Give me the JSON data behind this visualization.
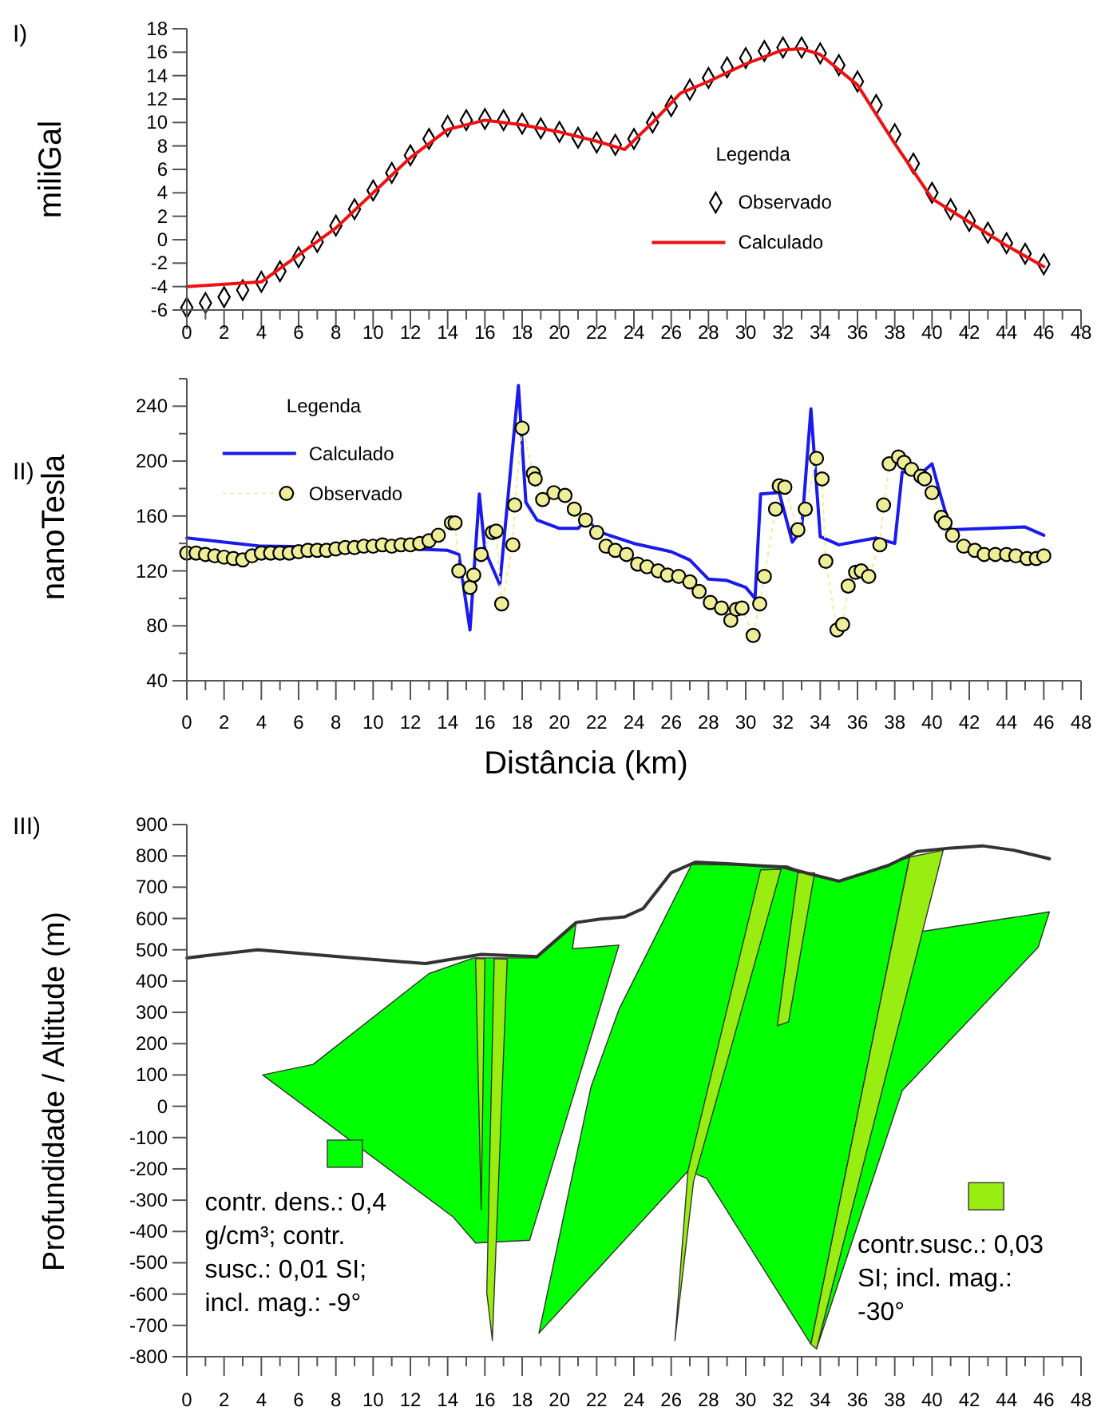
{
  "chart_data": [
    {
      "type": "line",
      "title": "I)",
      "ylabel": "miliGal",
      "legend_title": "Legenda",
      "legend": "right",
      "ylim": [
        -6,
        18
      ],
      "yticks": [
        -6,
        -4,
        -2,
        0,
        2,
        4,
        6,
        8,
        10,
        12,
        14,
        16,
        18
      ],
      "xlim": [
        0,
        48
      ],
      "xticks": [
        0,
        {
          "value": 1,
          "label": null
        },
        2,
        {
          "value": 3,
          "label": null
        },
        4,
        {
          "value": 5,
          "label": null
        },
        6,
        {
          "value": 7,
          "label": null
        },
        8,
        {
          "value": 9,
          "label": null
        },
        10,
        {
          "value": 11,
          "label": null
        },
        12,
        {
          "value": 13,
          "label": null
        },
        14,
        {
          "value": 15,
          "label": null
        },
        16,
        {
          "value": 17,
          "label": null
        },
        18,
        {
          "value": 19,
          "label": null
        },
        20,
        {
          "value": 21,
          "label": null
        },
        22,
        {
          "value": 23,
          "label": null
        },
        24,
        {
          "value": 25,
          "label": null
        },
        26,
        {
          "value": 27,
          "label": null
        },
        28,
        {
          "value": 29,
          "label": null
        },
        30,
        {
          "value": 31,
          "label": null
        },
        32,
        {
          "value": 33,
          "label": null
        },
        34,
        {
          "value": 35,
          "label": null
        },
        36,
        {
          "value": 37,
          "label": null
        },
        38,
        {
          "value": 39,
          "label": null
        },
        40,
        {
          "value": 41,
          "label": null
        },
        42,
        {
          "value": 43,
          "label": null
        },
        44,
        {
          "value": 45,
          "label": null
        },
        46,
        {
          "value": 47,
          "label": null
        },
        48
      ],
      "series": [
        {
          "name": "Observado",
          "type": "scatter",
          "marker": "diamond",
          "color": "#000000",
          "x": [
            0,
            1,
            2,
            3,
            4,
            5,
            6,
            7,
            8,
            9,
            10,
            11,
            12,
            13,
            14,
            15,
            16,
            17,
            18,
            19,
            20,
            21,
            22,
            23,
            24,
            25,
            26,
            27,
            28,
            29,
            30,
            31,
            32,
            33,
            34,
            35,
            36,
            37,
            38,
            39,
            40,
            41,
            42,
            43,
            44,
            45,
            46
          ],
          "values": [
            -5.8,
            -5.4,
            -4.9,
            -4.3,
            -3.6,
            -2.7,
            -1.5,
            -0.2,
            1.2,
            2.6,
            4.2,
            5.7,
            7.2,
            8.6,
            9.7,
            10.2,
            10.3,
            10.2,
            9.9,
            9.5,
            9.2,
            8.7,
            8.3,
            8.1,
            8.6,
            10,
            11.4,
            12.8,
            13.8,
            14.7,
            15.5,
            16.1,
            16.4,
            16.4,
            15.9,
            14.9,
            13.5,
            11.5,
            9,
            6.5,
            4,
            2.6,
            1.6,
            0.6,
            -0.3,
            -1.2,
            -2.1
          ]
        },
        {
          "name": "Calculado",
          "color": "#ee1111",
          "x": [
            0,
            4,
            8,
            12,
            14,
            16,
            18,
            20,
            22,
            23.5,
            25,
            26.5,
            28,
            30,
            32,
            33,
            34,
            36,
            38,
            40,
            42,
            44,
            46
          ],
          "values": [
            -4,
            -3.6,
            1,
            7,
            9.4,
            10.2,
            9.8,
            9.2,
            8.4,
            7.7,
            10,
            12.5,
            13.5,
            15,
            16.2,
            16.3,
            15.8,
            13.2,
            8.2,
            3.5,
            1.5,
            -0.5,
            -2.3
          ]
        }
      ]
    },
    {
      "type": "line",
      "title": "II)",
      "ylabel": "nanoTesla",
      "xlabel": "Distância (km)",
      "legend_title": "Legenda",
      "legend": "top left",
      "ylim": [
        40,
        260
      ],
      "yticks": [
        40,
        {
          "value": 60,
          "label": null
        },
        80,
        {
          "value": 100,
          "label": null
        },
        120,
        {
          "value": 140,
          "label": null
        },
        160,
        {
          "value": 180,
          "label": null
        },
        200,
        {
          "value": 220,
          "label": null
        },
        240,
        {
          "value": 260,
          "label": null
        }
      ],
      "xlim": [
        0,
        48
      ],
      "xticks": [
        0,
        {
          "value": 1,
          "label": null
        },
        2,
        {
          "value": 3,
          "label": null
        },
        4,
        {
          "value": 5,
          "label": null
        },
        6,
        {
          "value": 7,
          "label": null
        },
        8,
        {
          "value": 9,
          "label": null
        },
        10,
        {
          "value": 11,
          "label": null
        },
        12,
        {
          "value": 13,
          "label": null
        },
        14,
        {
          "value": 15,
          "label": null
        },
        16,
        {
          "value": 17,
          "label": null
        },
        18,
        {
          "value": 19,
          "label": null
        },
        20,
        {
          "value": 21,
          "label": null
        },
        22,
        {
          "value": 23,
          "label": null
        },
        24,
        {
          "value": 25,
          "label": null
        },
        26,
        {
          "value": 27,
          "label": null
        },
        28,
        {
          "value": 29,
          "label": null
        },
        30,
        {
          "value": 31,
          "label": null
        },
        32,
        {
          "value": 33,
          "label": null
        },
        34,
        {
          "value": 35,
          "label": null
        },
        36,
        {
          "value": 37,
          "label": null
        },
        38,
        {
          "value": 39,
          "label": null
        },
        40,
        {
          "value": 41,
          "label": null
        },
        42,
        {
          "value": 43,
          "label": null
        },
        44,
        {
          "value": 45,
          "label": null
        },
        46,
        {
          "value": 47,
          "label": null
        },
        48
      ],
      "series": [
        {
          "name": "Calculado",
          "color": "#1a1aee",
          "x": [
            0,
            2,
            4,
            10,
            14,
            14.6,
            15.2,
            15.7,
            16,
            16.8,
            17.8,
            18.2,
            18.8,
            20,
            21,
            21.5,
            22,
            24,
            26,
            27,
            28,
            29,
            30,
            30.5,
            30.8,
            31.8,
            32.5,
            33,
            33.5,
            34,
            35,
            37,
            38,
            38.4,
            39.5,
            40,
            40.5,
            41,
            45,
            46
          ],
          "values": [
            144,
            141,
            138,
            137,
            135,
            132,
            77,
            176,
            135,
            110,
            255,
            170,
            157,
            151,
            151,
            158,
            149,
            140,
            134,
            128,
            114,
            113,
            108,
            100,
            176,
            177,
            141,
            150,
            238,
            145,
            139,
            144,
            140,
            192,
            192,
            198,
            173,
            150,
            152,
            146
          ]
        },
        {
          "name": "Observado",
          "marker": "circle",
          "line_style": "dotted",
          "color": "#eeee99",
          "x": [
            0,
            0.5,
            1,
            1.5,
            2,
            2.5,
            3,
            3.5,
            4,
            4.5,
            5,
            5.5,
            6,
            6.5,
            7,
            7.5,
            8,
            8.5,
            9,
            9.5,
            10,
            10.5,
            11,
            11.5,
            12,
            12.5,
            13,
            13.5,
            14.2,
            14.4,
            14.6,
            15.2,
            15.4,
            15.8,
            16.4,
            16.6,
            16.9,
            17.5,
            17.6,
            18,
            18.6,
            18.7,
            19.1,
            19.7,
            20.3,
            20.8,
            21.4,
            22,
            22.5,
            23,
            23.6,
            24.2,
            24.7,
            25.3,
            25.8,
            26.4,
            27,
            27.5,
            28.1,
            28.7,
            29.2,
            29.5,
            29.8,
            30.4,
            30.75,
            31,
            31.6,
            31.8,
            32.1,
            32.8,
            33.2,
            33.8,
            34.1,
            34.3,
            34.9,
            35.2,
            35.5,
            35.9,
            36.2,
            36.6,
            37.2,
            37.4,
            37.7,
            38.2,
            38.5,
            38.9,
            39.4,
            39.6,
            40,
            40.5,
            40.7,
            41.1,
            41.7,
            42.3,
            42.8,
            43.4,
            44,
            44.5,
            45.1,
            45.6,
            46
          ],
          "values": [
            133,
            133,
            132,
            131,
            130,
            129,
            128,
            131,
            133,
            133,
            133,
            133,
            134,
            135,
            135,
            135,
            136,
            137,
            137,
            138,
            138,
            139,
            138,
            139,
            139,
            140,
            142,
            146,
            155,
            155,
            120,
            108,
            117,
            132,
            148,
            149,
            96,
            139,
            168,
            224,
            191,
            187,
            172,
            177,
            175,
            165,
            157,
            148,
            138,
            135,
            132,
            125,
            123,
            120,
            117,
            116,
            112,
            105,
            97,
            93,
            84,
            92,
            93,
            73,
            96,
            116,
            165,
            182,
            181,
            150,
            165,
            202,
            187,
            127,
            77,
            81,
            109,
            119,
            120,
            116,
            139,
            168,
            198,
            203,
            199,
            194,
            189,
            187,
            177,
            159,
            155,
            146,
            138,
            135,
            132,
            132,
            132,
            131,
            129,
            129,
            131
          ]
        }
      ]
    },
    {
      "type": "area",
      "title": "III)",
      "ylabel": "Profundidade / Altitude (m)",
      "legend": "bottom",
      "ylim": [
        -800,
        900
      ],
      "yticks": [
        -800,
        -700,
        -600,
        -500,
        -400,
        -300,
        -200,
        -100,
        0,
        100,
        200,
        300,
        400,
        500,
        600,
        700,
        800,
        900
      ],
      "xlim": [
        0,
        48
      ],
      "xticks": [
        0,
        {
          "value": 1,
          "label": null
        },
        2,
        {
          "value": 3,
          "label": null
        },
        4,
        {
          "value": 5,
          "label": null
        },
        6,
        {
          "value": 7,
          "label": null
        },
        8,
        {
          "value": 9,
          "label": null
        },
        10,
        {
          "value": 11,
          "label": null
        },
        12,
        {
          "value": 13,
          "label": null
        },
        14,
        {
          "value": 15,
          "label": null
        },
        16,
        {
          "value": 17,
          "label": null
        },
        18,
        {
          "value": 19,
          "label": null
        },
        20,
        {
          "value": 21,
          "label": null
        },
        22,
        {
          "value": 23,
          "label": null
        },
        24,
        {
          "value": 25,
          "label": null
        },
        26,
        {
          "value": 27,
          "label": null
        },
        28,
        {
          "value": 29,
          "label": null
        },
        30,
        {
          "value": 31,
          "label": null
        },
        32,
        {
          "value": 33,
          "label": null
        },
        34,
        {
          "value": 35,
          "label": null
        },
        36,
        {
          "value": 37,
          "label": null
        },
        38,
        {
          "value": 39,
          "label": null
        },
        40,
        {
          "value": 41,
          "label": null
        },
        42,
        {
          "value": 43,
          "label": null
        },
        44,
        {
          "value": 45,
          "label": null
        },
        46,
        {
          "value": 47,
          "label": null
        },
        48
      ],
      "series": [
        {
          "name": "contr. dens.: 0,4 g/cm³; contr. susc.: 0,01 SI; incl. mag.: -9°",
          "color": "#00ff00",
          "x": [
            4.07,
            6.78,
            13,
            15.4,
            18.8,
            20.9,
            20.7,
            23.2,
            20.9,
            18.4,
            15.5,
            14.3
          ],
          "values": [
            100,
            134,
            424,
            474,
            474,
            587,
            503,
            515,
            63,
            -428,
            -437,
            -354
          ]
        },
        {
          "type": "area",
          "color": "#00ff00",
          "x": [
            23.2,
            27.1,
            32.2,
            33.2,
            35,
            38.8,
            33.5,
            27.9,
            26.9,
            18.9,
            21.7
          ],
          "values": [
            310,
            773,
            768,
            746,
            719,
            796,
            -760,
            -230,
            -207,
            -725,
            63
          ]
        },
        {
          "type": "area",
          "color": "#00ff00",
          "x": [
            39.4,
            46.3,
            45.7,
            38.4,
            33.8
          ],
          "values": [
            558,
            621,
            508,
            50,
            -775
          ]
        },
        {
          "name": "contr.susc.: 0,03 SI; incl. mag.: -30°",
          "color": "#99ee11",
          "x": [
            38.8,
            40.6,
            33.8,
            33.5
          ],
          "values": [
            796,
            818,
            -775,
            -760
          ]
        },
        {
          "type": "area",
          "color": "#99ee11",
          "x": [
            15.5,
            16,
            15.8
          ],
          "values": [
            472,
            472,
            -330
          ]
        },
        {
          "type": "area",
          "color": "#99ee11",
          "x": [
            16.5,
            17.2,
            16.4,
            16.1
          ],
          "values": [
            472,
            470,
            -748,
            -595
          ]
        },
        {
          "type": "area",
          "color": "#99ee11",
          "x": [
            30.8,
            31.9,
            27.2,
            26.2,
            26.9
          ],
          "values": [
            755,
            757,
            -240,
            -748,
            -207
          ]
        },
        {
          "type": "area",
          "color": "#99ee11",
          "x": [
            32.8,
            33.7,
            32.3,
            31.7
          ],
          "values": [
            746,
            746,
            270,
            257
          ]
        },
        {
          "type": "line",
          "color": "#333333",
          "x": [
            0,
            3.8,
            9,
            12.8,
            15.8,
            18.8,
            20.9,
            22.2,
            23.5,
            24.5,
            26,
            27.3,
            29,
            32,
            35,
            37.6,
            39.2,
            41,
            42.7,
            44.4,
            46.3
          ],
          "values": [
            474,
            500,
            474,
            456,
            485,
            478,
            587,
            598,
            605,
            632,
            746,
            780,
            775,
            764,
            719,
            768,
            814,
            825,
            832,
            818,
            791
          ]
        }
      ]
    }
  ]
}
